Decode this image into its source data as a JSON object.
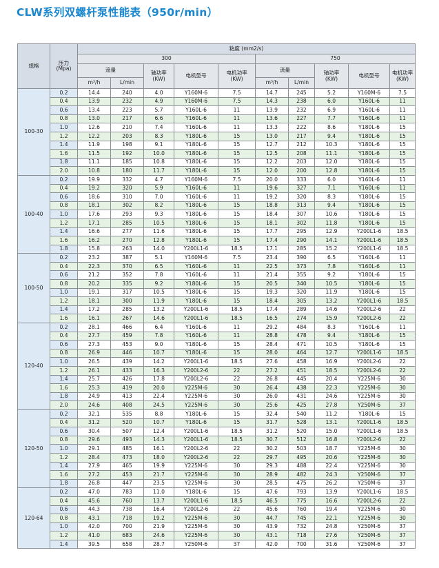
{
  "title": "CLW系列双螺杆泵性能表（950r/min）",
  "header": {
    "spec": "规格",
    "pressure": "压力\n(Mpa)",
    "viscosity": "粘度 (mm2/s)",
    "visc_a": "300",
    "visc_b": "750",
    "flow": "流量",
    "shaft_power": "轴功率\n(KW)",
    "motor_model": "电机型号",
    "motor_power": "电机功率\n(KW)",
    "flow_unit_a": "m³/h",
    "flow_unit_b": "L/min"
  },
  "groups": [
    {
      "spec": "100-30",
      "rows": [
        [
          "0.2",
          "14.4",
          "240",
          "4.0",
          "Y160M-6",
          "7.5",
          "14.7",
          "245",
          "5.2",
          "Y160M-6",
          "7.5"
        ],
        [
          "0.4",
          "13.9",
          "232",
          "4.9",
          "Y160M-6",
          "7.5",
          "14.3",
          "238",
          "6.0",
          "Y160L-6",
          "11"
        ],
        [
          "0.6",
          "13.4",
          "223",
          "5.7",
          "Y160L-6",
          "11",
          "13.9",
          "232",
          "6.9",
          "Y160L-6",
          "11"
        ],
        [
          "0.8",
          "13.0",
          "217",
          "6.6",
          "Y160L-6",
          "11",
          "13.6",
          "227",
          "7.7",
          "Y160L-6",
          "11"
        ],
        [
          "1.0",
          "12.6",
          "210",
          "7.4",
          "Y160L-6",
          "11",
          "13.3",
          "222",
          "8.6",
          "Y180L-6",
          "15"
        ],
        [
          "1.2",
          "12.2",
          "203",
          "8.3",
          "Y180L-6",
          "15",
          "13.0",
          "217",
          "9.4",
          "Y180L-6",
          "15"
        ],
        [
          "1.4",
          "11.9",
          "198",
          "9.1",
          "Y180L-6",
          "15",
          "12.7",
          "212",
          "10.3",
          "Y180L-6",
          "15"
        ],
        [
          "1.6",
          "11.5",
          "192",
          "10.0",
          "Y180L-6",
          "15",
          "12.5",
          "208",
          "11.1",
          "Y180L-6",
          "15"
        ],
        [
          "1.8",
          "11.1",
          "185",
          "10.8",
          "Y180L-6",
          "15",
          "12.2",
          "203",
          "12.0",
          "Y180L-6",
          "15"
        ],
        [
          "2.0",
          "10.8",
          "180",
          "11.7",
          "Y180L-6",
          "15",
          "12.0",
          "200",
          "12.8",
          "Y180L-6",
          "15"
        ]
      ]
    },
    {
      "spec": "100-40",
      "rows": [
        [
          "0.2",
          "19.9",
          "332",
          "4.7",
          "Y160M-6",
          "7.5",
          "20.0",
          "333",
          "6.0",
          "Y160L-6",
          "11"
        ],
        [
          "0.4",
          "19.2",
          "320",
          "5.9",
          "Y160L-6",
          "11",
          "19.6",
          "327",
          "7.1",
          "Y160L-6",
          "11"
        ],
        [
          "0.6",
          "18.6",
          "310",
          "7.0",
          "Y160L-6",
          "11",
          "19.2",
          "320",
          "8.3",
          "Y180L-6",
          "15"
        ],
        [
          "0.8",
          "18.1",
          "302",
          "8.2",
          "Y180L-6",
          "15",
          "18.8",
          "313",
          "9.4",
          "Y180L-6",
          "15"
        ],
        [
          "1.0",
          "17.6",
          "293",
          "9.3",
          "Y180L-6",
          "15",
          "18.4",
          "307",
          "10.6",
          "Y180L-6",
          "15"
        ],
        [
          "1.2",
          "17.1",
          "285",
          "10.5",
          "Y180L-6",
          "15",
          "18.1",
          "302",
          "11.8",
          "Y180L-6",
          "15"
        ],
        [
          "1.4",
          "16.6",
          "277",
          "11.6",
          "Y180L-6",
          "15",
          "17.7",
          "295",
          "12.9",
          "Y200L1-6",
          "18.5"
        ],
        [
          "1.6",
          "16.2",
          "270",
          "12.8",
          "Y180L-6",
          "15",
          "17.4",
          "290",
          "14.1",
          "Y200L1-6",
          "18.5"
        ],
        [
          "1.8",
          "15.8",
          "263",
          "14.0",
          "Y200L1-6",
          "18.5",
          "17.1",
          "285",
          "15.2",
          "Y200L1-6",
          "18.5"
        ]
      ]
    },
    {
      "spec": "100-50",
      "rows": [
        [
          "0.2",
          "23.2",
          "387",
          "5.1",
          "Y160M-6",
          "7.5",
          "23.4",
          "390",
          "6.5",
          "Y160L-6",
          "11"
        ],
        [
          "0.4",
          "22.3",
          "370",
          "6.5",
          "Y160L-6",
          "11",
          "22.5",
          "373",
          "7.8",
          "Y160L-6",
          "11"
        ],
        [
          "0.6",
          "21.2",
          "352",
          "7.8",
          "Y160L-6",
          "11",
          "21.4",
          "355",
          "9.2",
          "Y180L-6",
          "15"
        ],
        [
          "0.8",
          "20.2",
          "335",
          "9.2",
          "Y180L-6",
          "15",
          "20.5",
          "340",
          "10.5",
          "Y180L-6",
          "15"
        ],
        [
          "1.0",
          "19.1",
          "317",
          "10.5",
          "Y180L-6",
          "15",
          "19.3",
          "320",
          "11.9",
          "Y180L-6",
          "15"
        ],
        [
          "1.2",
          "18.1",
          "300",
          "11.9",
          "Y180L-6",
          "15",
          "18.4",
          "305",
          "13.2",
          "Y200L1-6",
          "18.5"
        ],
        [
          "1.4",
          "17.2",
          "285",
          "13.2",
          "Y200L1-6",
          "18.5",
          "17.4",
          "289",
          "14.6",
          "Y200L2-6",
          "22"
        ],
        [
          "1.6",
          "16.1",
          "267",
          "14.6",
          "Y200L1-6",
          "18.5",
          "16.5",
          "274",
          "15.9",
          "Y200L2-6",
          "22"
        ]
      ]
    },
    {
      "spec": "120-40",
      "rows": [
        [
          "0.2",
          "28.1",
          "466",
          "6.4",
          "Y160L-6",
          "11",
          "29.2",
          "484",
          "8.3",
          "Y160L-6",
          "11"
        ],
        [
          "0.4",
          "27.7",
          "459",
          "7.8",
          "Y160L-6",
          "11",
          "28.8",
          "478",
          "9.4",
          "Y180L-6",
          "15"
        ],
        [
          "0.6",
          "27.3",
          "453",
          "9.0",
          "Y180L-6",
          "15",
          "28.4",
          "471",
          "10.5",
          "Y180L-6",
          "15"
        ],
        [
          "0.8",
          "26.9",
          "446",
          "10.7",
          "Y180L-6",
          "15",
          "28.0",
          "464",
          "12.7",
          "Y200L1-6",
          "18.5"
        ],
        [
          "1.0",
          "26.5",
          "439",
          "14.2",
          "Y200L1-6",
          "18.5",
          "27.6",
          "458",
          "16.9",
          "Y200L2-6",
          "22"
        ],
        [
          "1.2",
          "26.1",
          "433",
          "16.3",
          "Y200L2-6",
          "22",
          "27.2",
          "451",
          "18.5",
          "Y200L2-6",
          "22"
        ],
        [
          "1.4",
          "25.7",
          "426",
          "17.8",
          "Y200L2-6",
          "22",
          "26.8",
          "445",
          "20.4",
          "Y225M-6",
          "30"
        ],
        [
          "1.6",
          "25.3",
          "419",
          "20.0",
          "Y225M-6",
          "30",
          "26.4",
          "438",
          "22.3",
          "Y225M-6",
          "30"
        ],
        [
          "1.8",
          "24.9",
          "413",
          "22.4",
          "Y225M-6",
          "30",
          "26.0",
          "431",
          "24.6",
          "Y225M-6",
          "30"
        ],
        [
          "2.0",
          "24.6",
          "408",
          "24.5",
          "Y225M-6",
          "30",
          "25.6",
          "425",
          "27.8",
          "Y250M-6",
          "37"
        ]
      ]
    },
    {
      "spec": "120-50",
      "rows": [
        [
          "0.2",
          "32.1",
          "535",
          "8.8",
          "Y180L-6",
          "15",
          "32.4",
          "540",
          "11.2",
          "Y180L-6",
          "15"
        ],
        [
          "0.4",
          "31.2",
          "520",
          "10.7",
          "Y180L-6",
          "15",
          "31.7",
          "528",
          "13.1",
          "Y200L1-6",
          "18.5"
        ],
        [
          "0.6",
          "30.4",
          "507",
          "12.4",
          "Y200L1-6",
          "18.5",
          "31.2",
          "520",
          "15.0",
          "Y200L1-6",
          "18.5"
        ],
        [
          "0.8",
          "29.6",
          "493",
          "14.3",
          "Y200L1-6",
          "18.5",
          "30.7",
          "512",
          "16.8",
          "Y200L2-6",
          "22"
        ],
        [
          "1.0",
          "29.1",
          "485",
          "16.1",
          "Y200L2-6",
          "22",
          "30.2",
          "503",
          "18.7",
          "Y225M-6",
          "30"
        ],
        [
          "1.2",
          "28.4",
          "473",
          "18.0",
          "Y200L2-6",
          "22",
          "29.7",
          "495",
          "20.6",
          "Y225M-6",
          "30"
        ],
        [
          "1.4",
          "27.9",
          "465",
          "19.9",
          "Y225M-6",
          "30",
          "29.3",
          "488",
          "22.4",
          "Y225M-6",
          "30"
        ],
        [
          "1.6",
          "27.2",
          "453",
          "21.7",
          "Y225M-6",
          "30",
          "28.9",
          "482",
          "24.3",
          "Y250M-6",
          "37"
        ],
        [
          "1.8",
          "26.8",
          "447",
          "23.5",
          "Y225M-6",
          "30",
          "28.5",
          "475",
          "26.2",
          "Y250M-6",
          "37"
        ]
      ]
    },
    {
      "spec": "120-64",
      "rows": [
        [
          "0.2",
          "47.0",
          "783",
          "11.0",
          "Y180L-6",
          "15",
          "47.6",
          "793",
          "13.9",
          "Y200L1-6",
          "18.5"
        ],
        [
          "0.4",
          "45.6",
          "760",
          "13.7",
          "Y200L1-6",
          "18.5",
          "46.5",
          "775",
          "16.6",
          "Y200L2-6",
          "22"
        ],
        [
          "0.6",
          "44.3",
          "738",
          "16.4",
          "Y200L2-6",
          "22",
          "45.6",
          "760",
          "19.4",
          "Y225M-6",
          "30"
        ],
        [
          "0.8",
          "43.1",
          "718",
          "19.2",
          "Y225M-6",
          "30",
          "44.7",
          "745",
          "22.1",
          "Y225M-6",
          "30"
        ],
        [
          "1.0",
          "42.0",
          "700",
          "21.9",
          "Y225M-6",
          "30",
          "43.9",
          "732",
          "24.8",
          "Y250M-6",
          "37"
        ],
        [
          "1.2",
          "41.0",
          "683",
          "24.6",
          "Y225M-6",
          "30",
          "43.1",
          "718",
          "27.6",
          "Y250M-6",
          "37"
        ],
        [
          "1.4",
          "39.5",
          "658",
          "28.7",
          "Y250M-6",
          "37",
          "42.0",
          "700",
          "31.6",
          "Y250M-6",
          "37"
        ]
      ]
    }
  ]
}
